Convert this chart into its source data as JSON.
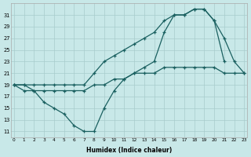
{
  "xlabel": "Humidex (Indice chaleur)",
  "background_color": "#c8e8e8",
  "grid_color": "#a8cccc",
  "line_color": "#1a6060",
  "x_ticks": [
    0,
    1,
    2,
    3,
    4,
    5,
    6,
    7,
    8,
    9,
    10,
    11,
    12,
    13,
    14,
    15,
    16,
    17,
    18,
    19,
    20,
    21,
    22,
    23
  ],
  "y_ticks": [
    11,
    13,
    15,
    17,
    19,
    21,
    23,
    25,
    27,
    29,
    31
  ],
  "ylim": [
    10,
    33
  ],
  "xlim": [
    -0.3,
    23.3
  ],
  "line_steep": {
    "x": [
      0,
      1,
      2,
      3,
      4,
      5,
      6,
      7,
      8,
      9,
      10,
      11,
      12,
      13,
      14,
      15,
      16,
      17,
      18,
      19,
      20,
      21
    ],
    "y": [
      19,
      19,
      19,
      19,
      19,
      19,
      19,
      19,
      21,
      23,
      24,
      25,
      26,
      27,
      28,
      30,
      31,
      31,
      32,
      32,
      30,
      23
    ]
  },
  "line_gradual": {
    "x": [
      0,
      1,
      2,
      3,
      4,
      5,
      6,
      7,
      8,
      9,
      10,
      11,
      12,
      13,
      14,
      15,
      16,
      17,
      18,
      19,
      20,
      21,
      22,
      23
    ],
    "y": [
      19,
      19,
      18,
      18,
      18,
      18,
      18,
      18,
      19,
      19,
      20,
      20,
      21,
      21,
      21,
      22,
      22,
      22,
      22,
      22,
      22,
      21,
      21,
      21
    ]
  },
  "line_dip": {
    "x": [
      0,
      1,
      2,
      3,
      4,
      5,
      6,
      7,
      8,
      9,
      10,
      11,
      12,
      13,
      14,
      15,
      16,
      17,
      18,
      19,
      20,
      21,
      22,
      23
    ],
    "y": [
      19,
      18,
      18,
      16,
      15,
      14,
      12,
      11,
      11,
      15,
      18,
      20,
      21,
      22,
      23,
      28,
      31,
      31,
      32,
      32,
      30,
      27,
      23,
      21
    ]
  }
}
